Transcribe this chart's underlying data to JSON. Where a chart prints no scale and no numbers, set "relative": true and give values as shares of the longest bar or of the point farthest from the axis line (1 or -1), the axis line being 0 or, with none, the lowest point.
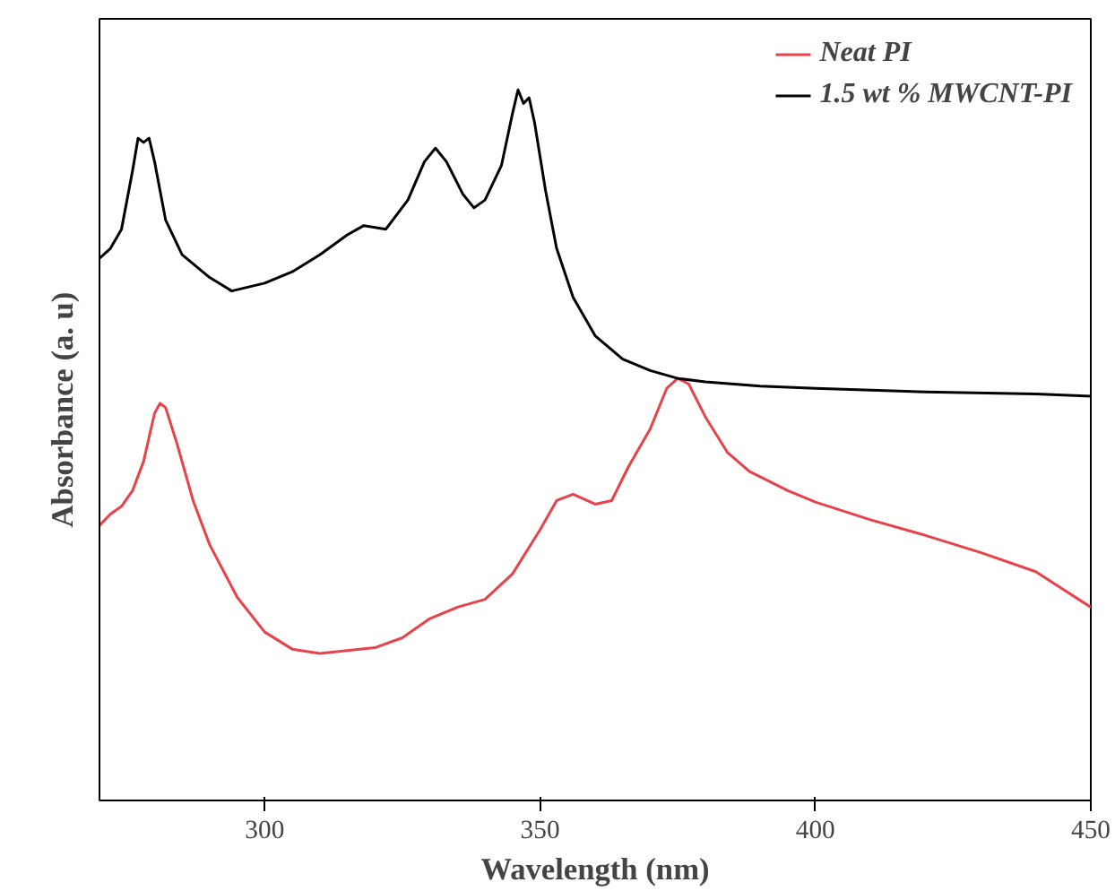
{
  "chart_data": {
    "type": "line",
    "relative": true,
    "xlabel": "Wavelength (nm)",
    "ylabel": "Absorbance (a. u)",
    "xlim": [
      270,
      450
    ],
    "xticks": [
      300,
      350,
      400,
      450
    ],
    "grid": false,
    "legend": "top right",
    "marker": "none",
    "line_style": "solid",
    "series": [
      {
        "name": "Neat PI",
        "color": "#e8424a",
        "x": [
          270,
          272,
          274,
          276,
          278,
          280,
          281,
          282,
          284,
          287,
          290,
          295,
          300,
          305,
          310,
          320,
          325,
          330,
          335,
          340,
          345,
          350,
          353,
          356,
          360,
          363,
          366,
          370,
          373,
          375,
          377,
          380,
          384,
          388,
          395,
          400,
          410,
          420,
          430,
          440,
          450
        ],
        "values": [
          0.387,
          0.403,
          0.414,
          0.436,
          0.477,
          0.545,
          0.559,
          0.553,
          0.504,
          0.422,
          0.36,
          0.286,
          0.237,
          0.213,
          0.207,
          0.215,
          0.229,
          0.256,
          0.272,
          0.283,
          0.319,
          0.381,
          0.422,
          0.431,
          0.417,
          0.422,
          0.469,
          0.523,
          0.58,
          0.594,
          0.586,
          0.54,
          0.49,
          0.463,
          0.436,
          0.42,
          0.395,
          0.373,
          0.349,
          0.322,
          0.272
        ]
      },
      {
        "name": "1.5 wt % MWCNT-PI",
        "color": "#000000",
        "x": [
          270,
          272,
          274,
          276,
          277,
          278,
          279,
          280,
          282,
          285,
          290,
          294,
          300,
          305,
          310,
          315,
          318,
          322,
          326,
          329,
          331,
          333,
          336,
          338,
          340,
          343,
          345,
          346,
          347,
          348,
          349,
          351,
          353,
          356,
          360,
          365,
          370,
          375,
          380,
          390,
          400,
          420,
          440,
          450
        ],
        "values": [
          0.763,
          0.777,
          0.804,
          0.886,
          0.932,
          0.926,
          0.932,
          0.899,
          0.817,
          0.768,
          0.736,
          0.717,
          0.728,
          0.744,
          0.768,
          0.796,
          0.809,
          0.804,
          0.845,
          0.899,
          0.918,
          0.899,
          0.853,
          0.834,
          0.845,
          0.894,
          0.967,
          1.0,
          0.981,
          0.989,
          0.954,
          0.858,
          0.777,
          0.708,
          0.654,
          0.621,
          0.605,
          0.594,
          0.589,
          0.583,
          0.58,
          0.575,
          0.572,
          0.569
        ]
      }
    ]
  }
}
